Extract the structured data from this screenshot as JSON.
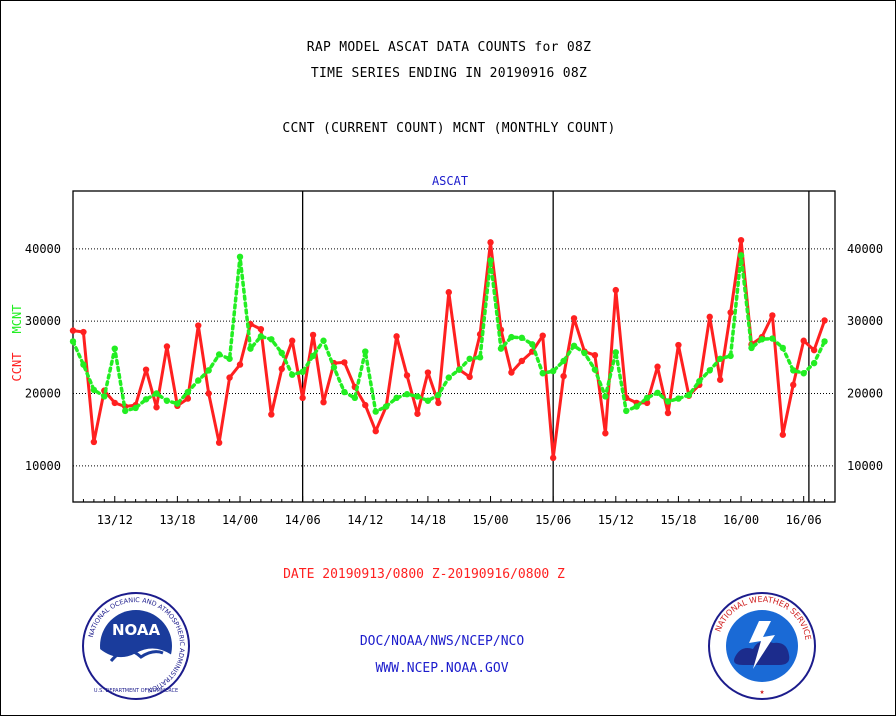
{
  "header": {
    "line1": "RAP MODEL ASCAT DATA COUNTS for 08Z",
    "line2": "TIME SERIES ENDING IN 20190916 08Z",
    "line3": "CCNT (CURRENT COUNT) MCNT (MONTHLY COUNT)"
  },
  "footer": {
    "date_range": "DATE 20190913/0800 Z-20190916/0800 Z",
    "org": "DOC/NOAA/NWS/NCEP/NCO",
    "url": "WWW.NCEP.NOAA.GOV"
  },
  "logos": {
    "noaa_text": "NOAA",
    "noaa_ring_text": "NATIONAL OCEANIC AND ATMOSPHERIC ADMINISTRATION",
    "noaa_bottom_text": "U.S. DEPARTMENT OF COMMERCE",
    "nws_ring_text": "NATIONAL WEATHER SERVICE"
  },
  "chart_data": {
    "type": "line",
    "title": "ASCAT",
    "ylabel_left_parts": [
      "CCNT",
      "MCNT"
    ],
    "ylim": [
      5000,
      48000
    ],
    "yticks": [
      10000,
      20000,
      30000,
      40000
    ],
    "ytick_labels": [
      "10000",
      "20000",
      "30000",
      "40000"
    ],
    "xlim": [
      0,
      73
    ],
    "xtick_labels": [
      "13/12",
      "13/18",
      "14/00",
      "14/06",
      "14/12",
      "14/18",
      "15/00",
      "15/06",
      "15/12",
      "15/18",
      "16/00",
      "16/06"
    ],
    "xtick_positions": [
      4,
      10,
      16,
      22,
      28,
      34,
      40,
      46,
      52,
      58,
      64,
      70
    ],
    "day_boundaries": [
      22,
      46,
      70.5
    ],
    "grid": true,
    "colors": {
      "ccnt": "#ff2020",
      "mcnt": "#22ee22",
      "title": "#1c1ccc",
      "footer_date": "#ff2020",
      "footer_org": "#1c1ccc"
    },
    "series": [
      {
        "name": "CCNT",
        "style": "solid",
        "values": [
          28700,
          28500,
          13300,
          20400,
          18700,
          18200,
          18400,
          23300,
          18100,
          26500,
          18300,
          19300,
          29400,
          20000,
          13200,
          22200,
          24000,
          29600,
          28900,
          17100,
          23400,
          27300,
          19400,
          28100,
          18800,
          24200,
          24300,
          20900,
          18400,
          14800,
          18200,
          27900,
          22500,
          17200,
          22900,
          18700,
          34000,
          23300,
          22300,
          28200,
          40900,
          28800,
          22900,
          24500,
          25800,
          28000,
          11100,
          22400,
          30400,
          25800,
          25300,
          14500,
          34300,
          19400,
          18700,
          18700,
          23700,
          17300,
          26700,
          19700,
          21200,
          30600,
          21900,
          31200,
          41200,
          26800,
          27800,
          30800,
          14300,
          21200,
          27300,
          26000,
          30100
        ]
      },
      {
        "name": "MCNT",
        "style": "dotted",
        "values": [
          27200,
          24000,
          20500,
          19600,
          26200,
          17600,
          18000,
          19200,
          20000,
          19000,
          18600,
          20200,
          21800,
          23200,
          25400,
          24800,
          38900,
          26200,
          27900,
          27500,
          25600,
          22600,
          23000,
          25200,
          27300,
          23600,
          20200,
          19400,
          25800,
          17500,
          18200,
          19400,
          19900,
          19600,
          19000,
          19800,
          22200,
          23300,
          24800,
          25000,
          38400,
          26200,
          27800,
          27700,
          26800,
          22800,
          23100,
          24500,
          26600,
          25600,
          23300,
          19600,
          25700,
          17600,
          18200,
          19400,
          20100,
          18900,
          19300,
          19800,
          21700,
          23200,
          24800,
          25200,
          39100,
          26300,
          27500,
          27600,
          26300,
          23200,
          22800,
          24200,
          27200
        ]
      }
    ]
  }
}
